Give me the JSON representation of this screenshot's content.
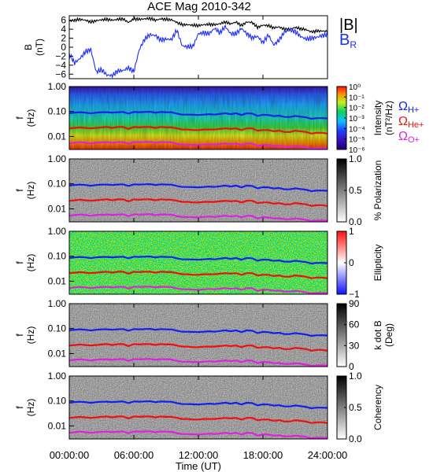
{
  "title": "ACE Mag 2010-342",
  "colors": {
    "total_field": "#000000",
    "radial_field": "#1a2cff",
    "h_plus": "#1020f0",
    "he_plus": "#ee1010",
    "o_plus": "#e020e0"
  },
  "x_axis": {
    "label": "Time (UT)",
    "range_hours": [
      0,
      24
    ],
    "tick_labels": [
      "00:00:00",
      "06:00:00",
      "12:00:00",
      "18:00:00",
      "24:00:00"
    ]
  },
  "freq_axis": {
    "scale": "log",
    "range_hz": [
      0.003,
      1.0
    ],
    "tick_labels": [
      "1.00",
      "0.10",
      "0.01"
    ],
    "ylabel_line1": "f",
    "ylabel_line2": "(Hz)"
  },
  "gyro_labels": {
    "h": "Ω",
    "h_sub": "H+",
    "he": "Ω",
    "he_sub": "He+",
    "o": "Ω",
    "o_sub": "O+"
  },
  "chart_data": [
    {
      "type": "line",
      "panel": "field",
      "ylabel_line1": "B",
      "ylabel_line2": "(nT)",
      "ylim": [
        -7,
        7
      ],
      "y_tick_labels": [
        "6",
        "4",
        "2",
        "0",
        "−2",
        "−4",
        "−6"
      ],
      "x_hours": [
        0,
        0.5,
        1,
        1.5,
        2,
        2.5,
        3,
        3.5,
        4,
        4.5,
        5,
        5.5,
        6,
        6.5,
        7,
        7.5,
        8,
        8.5,
        9,
        9.5,
        10,
        10.5,
        11,
        11.5,
        12,
        12.5,
        13,
        13.5,
        14,
        14.5,
        15,
        15.5,
        16,
        16.5,
        17,
        17.5,
        18,
        18.5,
        19,
        19.5,
        20,
        20.5,
        21,
        21.5,
        22,
        22.5,
        23,
        23.5,
        24
      ],
      "series": [
        {
          "name": "|B|",
          "label_main": "|B|",
          "label_sub": "",
          "values": [
            5.8,
            6.0,
            6.2,
            6.0,
            5.6,
            5.9,
            6.1,
            6.2,
            6.0,
            6.2,
            6.3,
            5.5,
            6.3,
            6.2,
            6.3,
            6.4,
            6.0,
            6.3,
            6.2,
            6.1,
            5.5,
            5.0,
            5.0,
            4.9,
            4.8,
            5.0,
            5.1,
            5.0,
            5.2,
            5.6,
            5.2,
            5.6,
            4.8,
            5.6,
            5.5,
            4.4,
            4.9,
            4.8,
            4.3,
            4.5,
            4.0,
            4.0,
            4.4,
            4.1,
            3.9,
            3.4,
            3.6,
            3.6,
            3.5
          ]
        },
        {
          "name": "B_R",
          "label_main": "B",
          "label_sub": "R",
          "values": [
            -1.5,
            -3.5,
            -2.5,
            -1.0,
            -0.5,
            -5.5,
            -5.0,
            -6.2,
            -6.3,
            -5.3,
            -5.2,
            -4.6,
            -5.4,
            -0.6,
            1.8,
            2.8,
            2.6,
            1.6,
            1.8,
            1.7,
            3.8,
            0.3,
            0.1,
            0.2,
            3.0,
            3.2,
            3.0,
            4.2,
            3.2,
            4.6,
            3.0,
            3.0,
            4.2,
            3.0,
            2.1,
            2.4,
            1.0,
            2.7,
            0.5,
            1.6,
            3.4,
            3.8,
            3.5,
            2.4,
            1.8,
            2.0,
            2.2,
            2.6,
            2.8
          ]
        }
      ]
    },
    {
      "type": "heatmap",
      "panel": "intensity",
      "colorbar_label_line1": "Intensity",
      "colorbar_label_line2": "(nT²/Hz)",
      "colorbar_scale": "log",
      "colorbar_range": [
        1e-06,
        1
      ],
      "colorbar_tick_labels": [
        "10⁰",
        "10⁻¹",
        "10⁻²",
        "10⁻³",
        "10⁻⁴",
        "10⁻⁵",
        "10⁻⁶"
      ]
    },
    {
      "type": "heatmap",
      "panel": "polarization",
      "colorbar_label": "% Polarization",
      "colorbar_range": [
        0,
        1
      ],
      "colorbar_tick_labels": [
        "1.0",
        "0.5",
        "0.0"
      ]
    },
    {
      "type": "heatmap",
      "panel": "ellipticity",
      "colorbar_label": "Ellipticity",
      "colorbar_range": [
        -1,
        1
      ],
      "colorbar_tick_labels": [
        "1",
        "0",
        "−1"
      ]
    },
    {
      "type": "heatmap",
      "panel": "k_dot_b",
      "colorbar_label_line1": "k dot B",
      "colorbar_label_line2": "(Deg)",
      "colorbar_range": [
        0,
        90
      ],
      "colorbar_tick_labels": [
        "90",
        "60",
        "30",
        "0"
      ]
    },
    {
      "type": "heatmap",
      "panel": "coherency",
      "colorbar_label": "Coherency",
      "colorbar_range": [
        0,
        1
      ],
      "colorbar_tick_labels": [
        "1.0",
        "0.5",
        "0.0"
      ]
    },
    {
      "type": "line",
      "panel": "gyrofrequencies_overlay",
      "x_hours": [
        0,
        0.5,
        1,
        1.5,
        2,
        2.5,
        3,
        3.5,
        4,
        4.5,
        5,
        5.5,
        6,
        6.5,
        7,
        7.5,
        8,
        8.5,
        9,
        9.5,
        10,
        10.5,
        11,
        11.5,
        12,
        12.5,
        13,
        13.5,
        14,
        14.5,
        15,
        15.5,
        16,
        16.5,
        17,
        17.5,
        18,
        18.5,
        19,
        19.5,
        20,
        20.5,
        21,
        21.5,
        22,
        22.5,
        23,
        23.5,
        24
      ],
      "series": [
        {
          "name": "ΩH+",
          "values": [
            0.085,
            0.09,
            0.094,
            0.09,
            0.084,
            0.09,
            0.093,
            0.094,
            0.09,
            0.094,
            0.096,
            0.082,
            0.096,
            0.094,
            0.096,
            0.098,
            0.09,
            0.096,
            0.094,
            0.093,
            0.082,
            0.075,
            0.075,
            0.074,
            0.072,
            0.075,
            0.078,
            0.075,
            0.08,
            0.085,
            0.078,
            0.085,
            0.072,
            0.085,
            0.082,
            0.066,
            0.074,
            0.072,
            0.065,
            0.068,
            0.06,
            0.06,
            0.066,
            0.062,
            0.058,
            0.051,
            0.054,
            0.054,
            0.053
          ]
        },
        {
          "name": "ΩHe+",
          "values": [
            0.021,
            0.022,
            0.023,
            0.022,
            0.021,
            0.022,
            0.023,
            0.024,
            0.022,
            0.024,
            0.024,
            0.02,
            0.024,
            0.023,
            0.024,
            0.024,
            0.022,
            0.024,
            0.023,
            0.023,
            0.021,
            0.019,
            0.019,
            0.018,
            0.018,
            0.019,
            0.019,
            0.019,
            0.02,
            0.021,
            0.02,
            0.021,
            0.018,
            0.021,
            0.021,
            0.017,
            0.018,
            0.018,
            0.016,
            0.017,
            0.015,
            0.015,
            0.017,
            0.016,
            0.015,
            0.013,
            0.014,
            0.014,
            0.013
          ]
        },
        {
          "name": "ΩO+",
          "values": [
            0.0053,
            0.0056,
            0.0059,
            0.0056,
            0.0053,
            0.0056,
            0.0058,
            0.0059,
            0.0056,
            0.0059,
            0.006,
            0.0051,
            0.006,
            0.0059,
            0.006,
            0.0061,
            0.0056,
            0.006,
            0.0059,
            0.0058,
            0.0051,
            0.0047,
            0.0047,
            0.0046,
            0.0045,
            0.0047,
            0.0049,
            0.0047,
            0.005,
            0.0053,
            0.0049,
            0.0053,
            0.0045,
            0.0053,
            0.0052,
            0.0041,
            0.0046,
            0.0045,
            0.0041,
            0.0042,
            0.0038,
            0.0038,
            0.0041,
            0.0039,
            0.0036,
            0.0032,
            0.0034,
            0.0034,
            0.0033
          ]
        }
      ]
    }
  ]
}
